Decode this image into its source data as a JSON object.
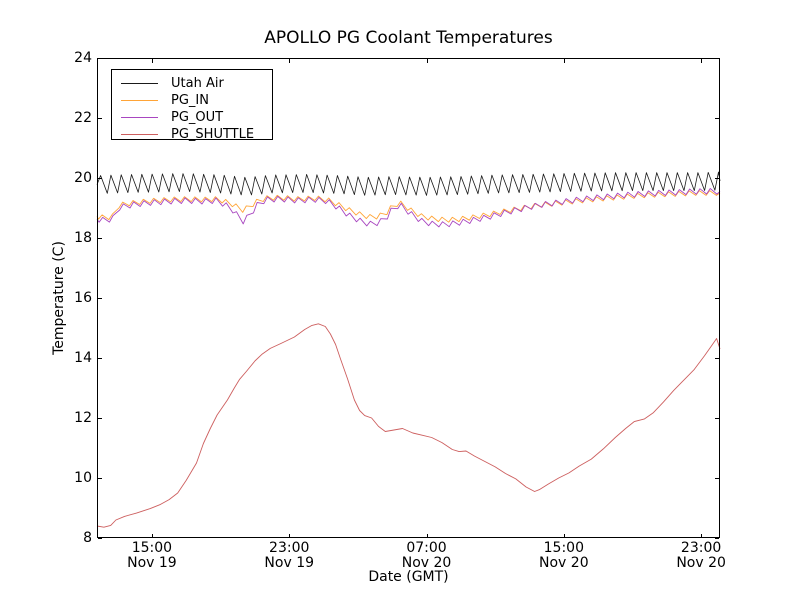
{
  "chart_data": {
    "type": "line",
    "title": "APOLLO PG Coolant Temperatures",
    "xlabel": "Date (GMT)",
    "ylabel": "Temperature (C)",
    "grid": false,
    "legend_position": "upper-left",
    "ylim": [
      8,
      24
    ],
    "y_ticks": [
      8,
      10,
      12,
      14,
      16,
      18,
      20,
      22,
      24
    ],
    "x_unit": "hours since Nov 19 00:00 GMT",
    "x_range_hours": [
      11.8,
      48.1
    ],
    "x_ticks": [
      {
        "hour": 15,
        "time": "15:00",
        "date": "Nov 19"
      },
      {
        "hour": 23,
        "time": "23:00",
        "date": "Nov 19"
      },
      {
        "hour": 31,
        "time": "07:00",
        "date": "Nov 20"
      },
      {
        "hour": 39,
        "time": "15:00",
        "date": "Nov 20"
      },
      {
        "hour": 47,
        "time": "23:00",
        "date": "Nov 20"
      }
    ],
    "series": [
      {
        "name": "Utah Air",
        "color": "#1a1a1a",
        "line_width": 0.8,
        "oscillation": {
          "period_h": 0.6,
          "amplitude": 0.3,
          "rise_fraction": 0.35,
          "phase": 0
        },
        "trend": [
          [
            11.8,
            19.78
          ],
          [
            14,
            19.82
          ],
          [
            17,
            19.85
          ],
          [
            19,
            19.8
          ],
          [
            20.5,
            19.72
          ],
          [
            22,
            19.8
          ],
          [
            24,
            19.82
          ],
          [
            26,
            19.78
          ],
          [
            27.5,
            19.72
          ],
          [
            29,
            19.75
          ],
          [
            31,
            19.72
          ],
          [
            33,
            19.75
          ],
          [
            35,
            19.8
          ],
          [
            37,
            19.82
          ],
          [
            39,
            19.85
          ],
          [
            41,
            19.87
          ],
          [
            43,
            19.88
          ],
          [
            45,
            19.88
          ],
          [
            47,
            19.88
          ],
          [
            48.1,
            19.9
          ]
        ]
      },
      {
        "name": "PG_IN",
        "color": "#ffa437",
        "line_width": 0.9,
        "oscillation": {
          "period_h": 0.6,
          "amplitude": 0.08,
          "rise_fraction": 0.35,
          "phase": 0.15
        },
        "trend": [
          [
            11.8,
            18.72
          ],
          [
            12.3,
            18.67
          ],
          [
            12.8,
            18.73
          ],
          [
            13.1,
            19.1
          ],
          [
            14,
            19.18
          ],
          [
            15,
            19.24
          ],
          [
            16,
            19.28
          ],
          [
            17,
            19.3
          ],
          [
            18,
            19.28
          ],
          [
            18.8,
            19.3
          ],
          [
            19.6,
            19.15
          ],
          [
            20.3,
            18.93
          ],
          [
            20.7,
            19.05
          ],
          [
            21.2,
            19.25
          ],
          [
            21.7,
            19.33
          ],
          [
            22.5,
            19.35
          ],
          [
            23.5,
            19.3
          ],
          [
            24.5,
            19.33
          ],
          [
            25.2,
            19.28
          ],
          [
            25.8,
            19.13
          ],
          [
            26.5,
            18.93
          ],
          [
            27.3,
            18.75
          ],
          [
            27.9,
            18.68
          ],
          [
            28.6,
            18.8
          ],
          [
            29.1,
            19.12
          ],
          [
            29.5,
            19.15
          ],
          [
            30.1,
            18.92
          ],
          [
            30.7,
            18.73
          ],
          [
            31.3,
            18.65
          ],
          [
            32.1,
            18.6
          ],
          [
            32.8,
            18.62
          ],
          [
            33.6,
            18.68
          ],
          [
            34.6,
            18.78
          ],
          [
            35.6,
            18.9
          ],
          [
            36.6,
            19.0
          ],
          [
            37.6,
            19.1
          ],
          [
            38.6,
            19.16
          ],
          [
            39.6,
            19.22
          ],
          [
            40.6,
            19.28
          ],
          [
            41.6,
            19.33
          ],
          [
            42.6,
            19.38
          ],
          [
            43.6,
            19.42
          ],
          [
            44.6,
            19.45
          ],
          [
            45.6,
            19.47
          ],
          [
            46.6,
            19.5
          ],
          [
            47.6,
            19.5
          ],
          [
            48.1,
            19.5
          ]
        ]
      },
      {
        "name": "PG_OUT",
        "color": "#a846c0",
        "line_width": 0.9,
        "oscillation": {
          "period_h": 0.6,
          "amplitude": 0.09,
          "rise_fraction": 0.35,
          "phase": 0.2
        },
        "trend": [
          [
            11.8,
            18.63
          ],
          [
            12.3,
            18.58
          ],
          [
            12.8,
            18.67
          ],
          [
            13.1,
            19.02
          ],
          [
            14,
            19.12
          ],
          [
            15,
            19.18
          ],
          [
            16,
            19.22
          ],
          [
            17,
            19.25
          ],
          [
            18,
            19.22
          ],
          [
            18.8,
            19.25
          ],
          [
            19.6,
            19.0
          ],
          [
            20.3,
            18.55
          ],
          [
            20.7,
            18.75
          ],
          [
            21.2,
            19.15
          ],
          [
            21.7,
            19.28
          ],
          [
            22.5,
            19.3
          ],
          [
            23.5,
            19.25
          ],
          [
            24.5,
            19.28
          ],
          [
            25.2,
            19.23
          ],
          [
            25.8,
            19.03
          ],
          [
            26.5,
            18.75
          ],
          [
            27.3,
            18.52
          ],
          [
            27.9,
            18.45
          ],
          [
            28.6,
            18.62
          ],
          [
            29.1,
            19.05
          ],
          [
            29.5,
            19.08
          ],
          [
            30.1,
            18.8
          ],
          [
            30.7,
            18.57
          ],
          [
            31.3,
            18.47
          ],
          [
            32.1,
            18.45
          ],
          [
            32.8,
            18.5
          ],
          [
            33.6,
            18.58
          ],
          [
            34.6,
            18.7
          ],
          [
            35.6,
            18.85
          ],
          [
            36.6,
            18.98
          ],
          [
            37.6,
            19.1
          ],
          [
            38.6,
            19.18
          ],
          [
            39.6,
            19.26
          ],
          [
            40.6,
            19.33
          ],
          [
            41.6,
            19.38
          ],
          [
            42.6,
            19.43
          ],
          [
            43.6,
            19.47
          ],
          [
            44.6,
            19.5
          ],
          [
            45.6,
            19.52
          ],
          [
            46.6,
            19.55
          ],
          [
            47.6,
            19.56
          ],
          [
            48.1,
            19.55
          ]
        ]
      },
      {
        "name": "PG_SHUTTLE",
        "color": "#cd5f5f",
        "line_width": 0.9,
        "oscillation": {
          "period_h": 0,
          "amplitude": 0,
          "rise_fraction": 0,
          "phase": 0
        },
        "trend": [
          [
            11.8,
            8.4
          ],
          [
            12.2,
            8.36
          ],
          [
            12.6,
            8.42
          ],
          [
            12.9,
            8.6
          ],
          [
            13.4,
            8.72
          ],
          [
            14.1,
            8.83
          ],
          [
            14.9,
            8.98
          ],
          [
            15.5,
            9.12
          ],
          [
            16.0,
            9.28
          ],
          [
            16.5,
            9.5
          ],
          [
            17.0,
            9.92
          ],
          [
            17.6,
            10.5
          ],
          [
            18.0,
            11.15
          ],
          [
            18.4,
            11.65
          ],
          [
            18.8,
            12.1
          ],
          [
            19.4,
            12.6
          ],
          [
            19.8,
            13.0
          ],
          [
            20.1,
            13.28
          ],
          [
            20.5,
            13.55
          ],
          [
            21.0,
            13.9
          ],
          [
            21.4,
            14.12
          ],
          [
            21.9,
            14.32
          ],
          [
            22.5,
            14.48
          ],
          [
            23.3,
            14.7
          ],
          [
            23.9,
            14.95
          ],
          [
            24.3,
            15.08
          ],
          [
            24.7,
            15.14
          ],
          [
            25.1,
            15.05
          ],
          [
            25.4,
            14.8
          ],
          [
            25.7,
            14.45
          ],
          [
            26.0,
            13.95
          ],
          [
            26.4,
            13.3
          ],
          [
            26.8,
            12.6
          ],
          [
            27.1,
            12.25
          ],
          [
            27.4,
            12.08
          ],
          [
            27.8,
            12.0
          ],
          [
            28.2,
            11.72
          ],
          [
            28.6,
            11.55
          ],
          [
            29.1,
            11.6
          ],
          [
            29.6,
            11.65
          ],
          [
            30.2,
            11.5
          ],
          [
            30.8,
            11.42
          ],
          [
            31.3,
            11.35
          ],
          [
            31.9,
            11.18
          ],
          [
            32.5,
            10.95
          ],
          [
            32.9,
            10.88
          ],
          [
            33.3,
            10.9
          ],
          [
            33.8,
            10.73
          ],
          [
            34.4,
            10.55
          ],
          [
            35.0,
            10.37
          ],
          [
            35.6,
            10.15
          ],
          [
            36.2,
            9.97
          ],
          [
            36.8,
            9.7
          ],
          [
            37.3,
            9.55
          ],
          [
            37.6,
            9.62
          ],
          [
            38.1,
            9.8
          ],
          [
            38.7,
            10.0
          ],
          [
            39.3,
            10.17
          ],
          [
            39.9,
            10.4
          ],
          [
            40.6,
            10.63
          ],
          [
            41.3,
            10.97
          ],
          [
            42.0,
            11.35
          ],
          [
            42.6,
            11.65
          ],
          [
            43.1,
            11.88
          ],
          [
            43.7,
            11.97
          ],
          [
            44.2,
            12.17
          ],
          [
            44.8,
            12.53
          ],
          [
            45.4,
            12.92
          ],
          [
            46.0,
            13.27
          ],
          [
            46.6,
            13.62
          ],
          [
            47.2,
            14.08
          ],
          [
            47.6,
            14.4
          ],
          [
            47.9,
            14.65
          ],
          [
            48.1,
            14.3
          ]
        ]
      }
    ]
  }
}
